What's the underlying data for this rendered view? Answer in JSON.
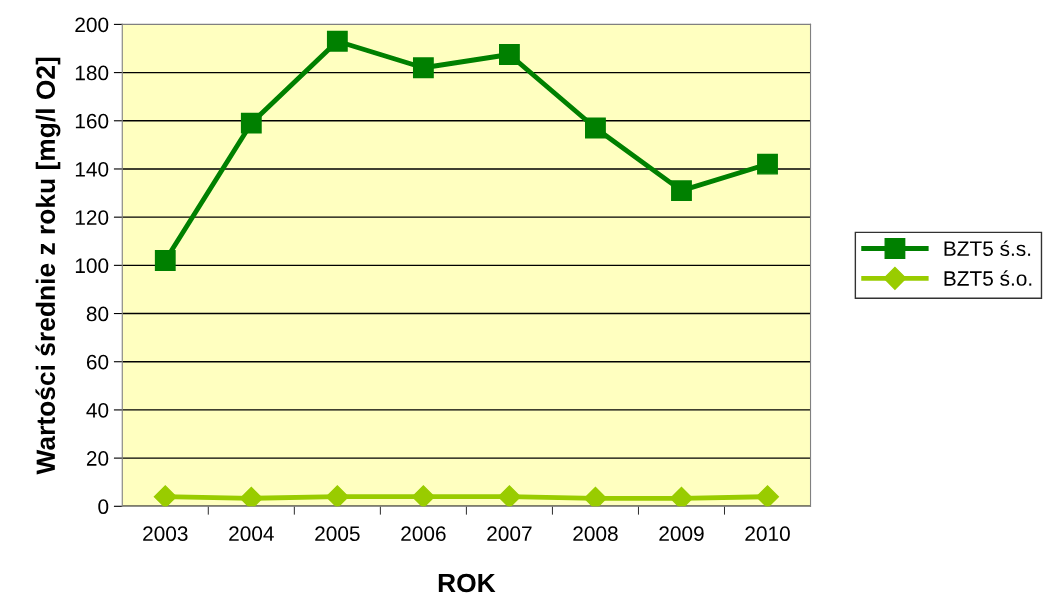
{
  "chart_data": {
    "type": "line",
    "xlabel": "ROK",
    "ylabel": "Wartości średnie z roku [mg/l O2]",
    "categories": [
      "2003",
      "2004",
      "2005",
      "2006",
      "2007",
      "2008",
      "2009",
      "2010"
    ],
    "series": [
      {
        "name": "BZT5 ś.s.",
        "color": "#008000",
        "marker": "square",
        "values": [
          102,
          159,
          193,
          182,
          187.5,
          157,
          131,
          142
        ]
      },
      {
        "name": "BZT5 ś.o.",
        "color": "#99cc00",
        "marker": "diamond",
        "values": [
          4,
          3.3,
          4,
          4,
          4,
          3.3,
          3.3,
          4
        ]
      }
    ],
    "ylim": [
      0,
      200
    ],
    "yticks": [
      0,
      20,
      40,
      60,
      80,
      100,
      120,
      140,
      160,
      180,
      200
    ],
    "grid": "y",
    "legend": "right",
    "line_style": "solid"
  }
}
